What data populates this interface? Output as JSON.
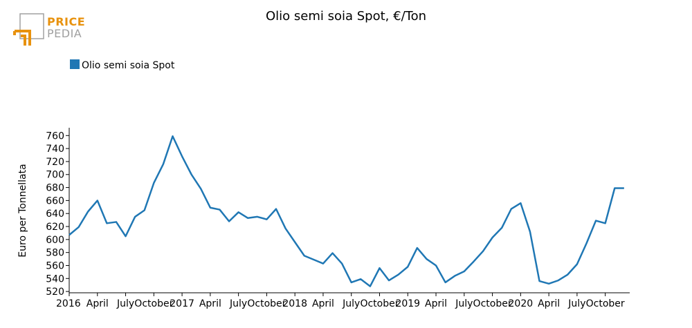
{
  "logo": {
    "line1": "PRICE",
    "line2": "PEDIA"
  },
  "colors": {
    "series": "#1f77b4",
    "logo_orange": "#e8920e",
    "logo_gray": "#a0a0a0"
  },
  "chart_data": {
    "type": "line",
    "title": "Olio semi soia Spot, €/Ton",
    "xlabel": "",
    "ylabel": "Euro per Tonnellata",
    "legend": {
      "position": "top-left",
      "entries": [
        "Olio semi soia Spot"
      ]
    },
    "grid": false,
    "ylim": [
      518,
      772
    ],
    "yticks": [
      520,
      540,
      560,
      580,
      600,
      620,
      640,
      660,
      680,
      700,
      720,
      740,
      760
    ],
    "xlim": [
      "2016-01",
      "2020-12"
    ],
    "xticks": [
      {
        "date": "2016-01",
        "label": "2016"
      },
      {
        "date": "2016-04",
        "label": "April"
      },
      {
        "date": "2016-07",
        "label": "July"
      },
      {
        "date": "2016-10",
        "label": "October"
      },
      {
        "date": "2017-01",
        "label": "2017"
      },
      {
        "date": "2017-04",
        "label": "April"
      },
      {
        "date": "2017-07",
        "label": "July"
      },
      {
        "date": "2017-10",
        "label": "October"
      },
      {
        "date": "2018-01",
        "label": "2018"
      },
      {
        "date": "2018-04",
        "label": "April"
      },
      {
        "date": "2018-07",
        "label": "July"
      },
      {
        "date": "2018-10",
        "label": "October"
      },
      {
        "date": "2019-01",
        "label": "2019"
      },
      {
        "date": "2019-04",
        "label": "April"
      },
      {
        "date": "2019-07",
        "label": "July"
      },
      {
        "date": "2019-10",
        "label": "October"
      },
      {
        "date": "2020-01",
        "label": "2020"
      },
      {
        "date": "2020-04",
        "label": "April"
      },
      {
        "date": "2020-07",
        "label": "July"
      },
      {
        "date": "2020-10",
        "label": "October"
      }
    ],
    "series": [
      {
        "name": "Olio semi soia Spot",
        "x": [
          "2016-01",
          "2016-02",
          "2016-03",
          "2016-04",
          "2016-05",
          "2016-06",
          "2016-07",
          "2016-08",
          "2016-09",
          "2016-10",
          "2016-11",
          "2016-12",
          "2017-01",
          "2017-02",
          "2017-03",
          "2017-04",
          "2017-05",
          "2017-06",
          "2017-07",
          "2017-08",
          "2017-09",
          "2017-10",
          "2017-11",
          "2017-12",
          "2018-01",
          "2018-02",
          "2018-03",
          "2018-04",
          "2018-05",
          "2018-06",
          "2018-07",
          "2018-08",
          "2018-09",
          "2018-10",
          "2018-11",
          "2018-12",
          "2019-01",
          "2019-02",
          "2019-03",
          "2019-04",
          "2019-05",
          "2019-06",
          "2019-07",
          "2019-08",
          "2019-09",
          "2019-10",
          "2019-11",
          "2019-12",
          "2020-01",
          "2020-02",
          "2020-03",
          "2020-04",
          "2020-05",
          "2020-06",
          "2020-07",
          "2020-08",
          "2020-09",
          "2020-10",
          "2020-11",
          "2020-12"
        ],
        "values": [
          607,
          619,
          643,
          660,
          625,
          627,
          605,
          635,
          645,
          687,
          716,
          759,
          728,
          700,
          678,
          649,
          646,
          628,
          642,
          633,
          635,
          631,
          647,
          617,
          596,
          575,
          569,
          563,
          579,
          563,
          534,
          539,
          528,
          556,
          537,
          546,
          558,
          587,
          570,
          560,
          534,
          544,
          551,
          566,
          582,
          603,
          618,
          647,
          656,
          612,
          536,
          532,
          537,
          546,
          562,
          594,
          629,
          625,
          679,
          679
        ]
      }
    ]
  }
}
